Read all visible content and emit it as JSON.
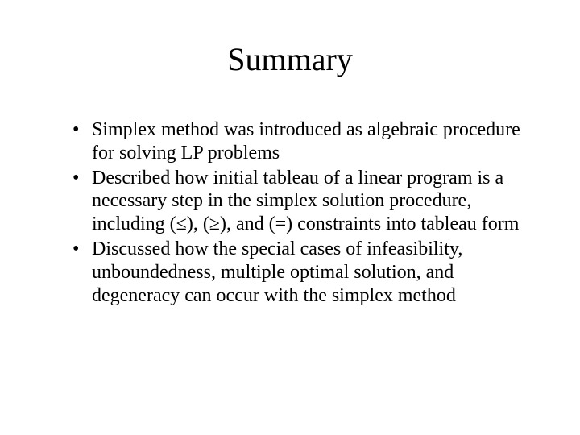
{
  "slide": {
    "title": "Summary",
    "bullets": [
      "Simplex method was introduced as algebraic procedure for solving LP problems",
      "Described how initial tableau of a linear program is a necessary step in the simplex solution procedure, including (≤), (≥), and (=) constraints into tableau form",
      "Discussed how the special cases of infeasibility, unboundedness, multiple optimal solution, and degeneracy can occur with the simplex method"
    ]
  },
  "colors": {
    "background": "#ffffff",
    "text": "#000000"
  },
  "typography": {
    "font_family": "Times New Roman",
    "title_fontsize": 40,
    "body_fontsize": 24
  }
}
